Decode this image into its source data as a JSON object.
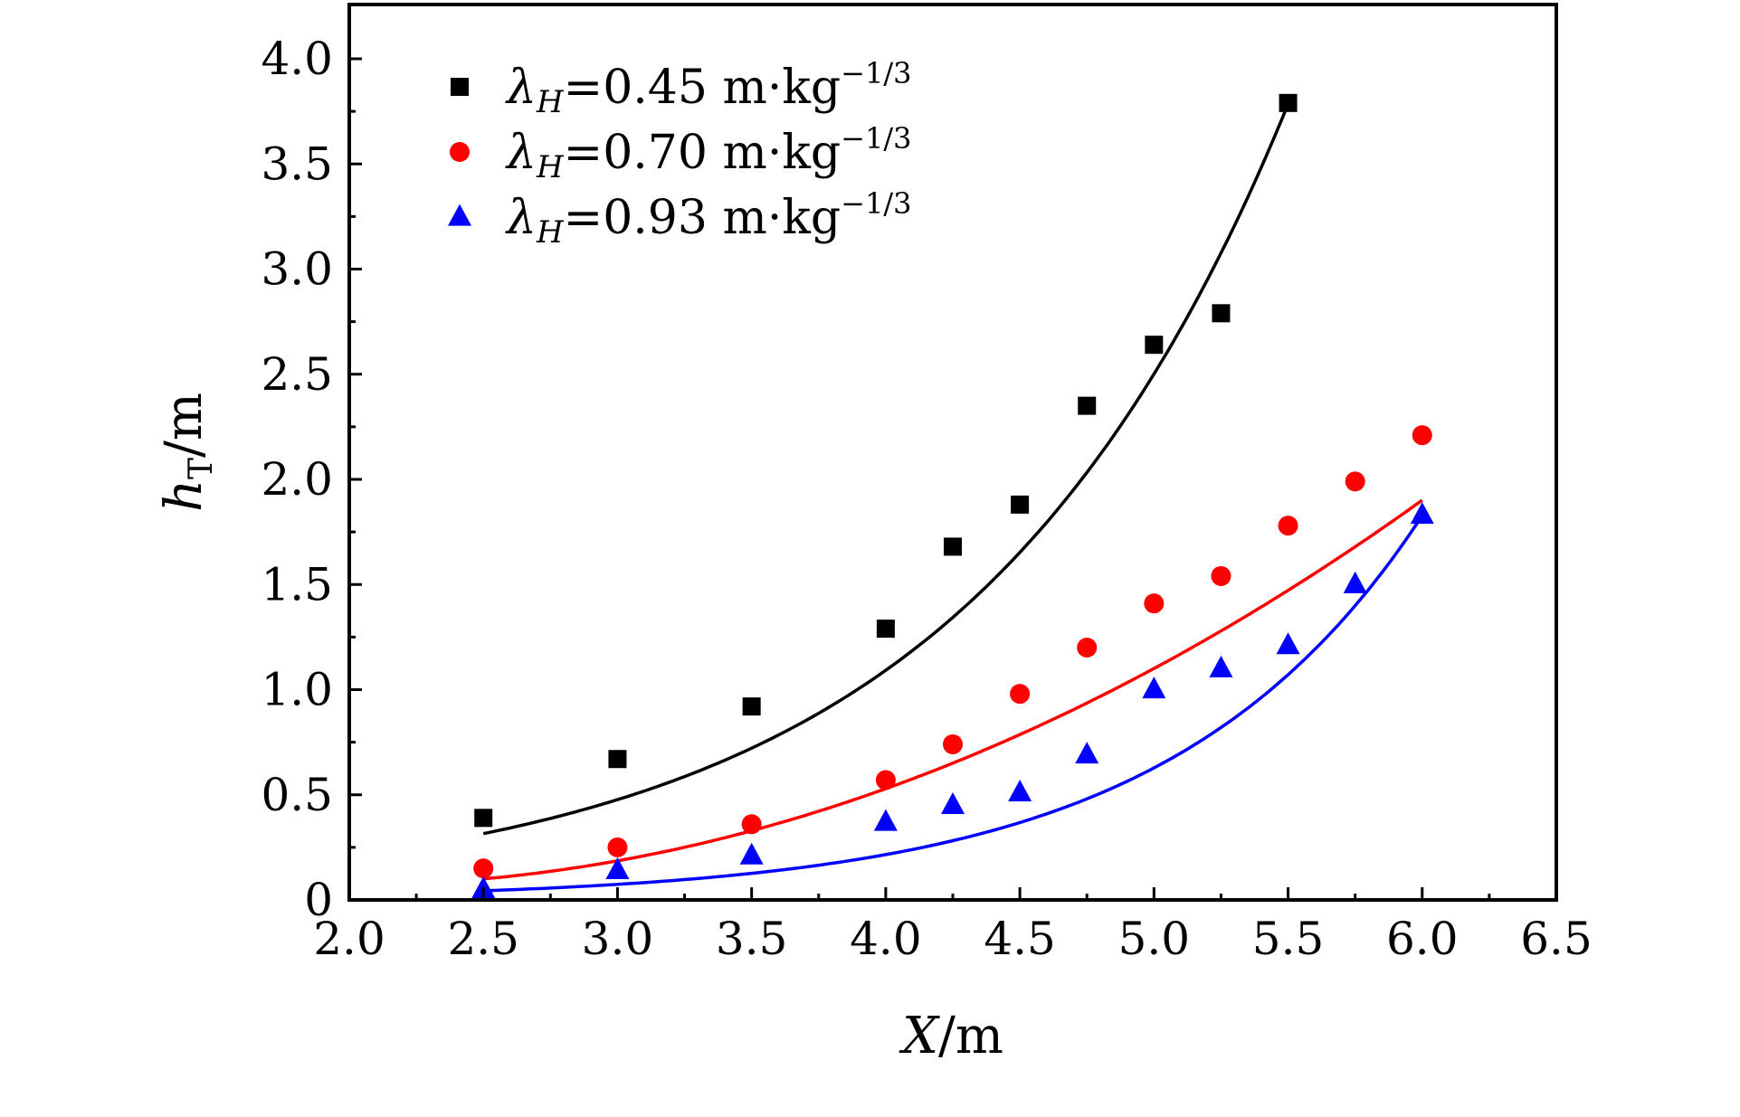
{
  "chart_data": {
    "type": "scatter",
    "title": "",
    "xlabel": {
      "var": "X",
      "unit": "/m"
    },
    "ylabel": {
      "var": "h",
      "sub": "T",
      "unit": "/m"
    },
    "xlim": [
      2.0,
      6.5
    ],
    "ylim": [
      0,
      4.25
    ],
    "xticks": [
      2.0,
      2.5,
      3.0,
      3.5,
      4.0,
      4.5,
      5.0,
      5.5,
      6.0,
      6.5
    ],
    "xtick_labels": [
      "2.0",
      "2.5",
      "3.0",
      "3.5",
      "4.0",
      "4.5",
      "5.0",
      "5.5",
      "6.0",
      "6.5"
    ],
    "yticks": [
      0,
      0.5,
      1.0,
      1.5,
      2.0,
      2.5,
      3.0,
      3.5,
      4.0
    ],
    "ytick_labels": [
      "0",
      "0.5",
      "1.0",
      "1.5",
      "2.0",
      "2.5",
      "3.0",
      "3.5",
      "4.0"
    ],
    "grid": false,
    "legend_position": "top-left",
    "series": [
      {
        "name": "λH=0.45 m·kg−1/3",
        "symbol": "λ",
        "sub": "H",
        "value": "=0.45 m·kg",
        "sup": "−1/3",
        "marker": "square",
        "color": "#000000",
        "x": [
          2.5,
          3.0,
          3.5,
          4.0,
          4.25,
          4.5,
          4.75,
          5.0,
          5.25,
          5.5
        ],
        "y": [
          0.39,
          0.67,
          0.92,
          1.29,
          1.68,
          1.88,
          2.35,
          2.64,
          2.79,
          3.79
        ],
        "fit": {
          "type": "exponential",
          "a": 0.0397,
          "b": 0.8286,
          "x_range": [
            2.5,
            5.5
          ]
        }
      },
      {
        "name": "λH=0.70 m·kg−1/3",
        "symbol": "λ",
        "sub": "H",
        "value": "=0.70 m·kg",
        "sup": "−1/3",
        "marker": "circle",
        "color": "#ff0000",
        "x": [
          2.5,
          3.0,
          3.5,
          4.0,
          4.25,
          4.5,
          4.75,
          5.0,
          5.25,
          5.5,
          5.75,
          6.0
        ],
        "y": [
          0.15,
          0.25,
          0.36,
          0.57,
          0.74,
          0.98,
          1.2,
          1.41,
          1.54,
          1.78,
          1.99,
          2.21
        ],
        "fit": {
          "type": "quadratic",
          "a": 0.1143,
          "b": -0.4571,
          "c": 0.5286,
          "x_range": [
            2.5,
            6.0
          ]
        }
      },
      {
        "name": "λH=0.93 m·kg−1/3",
        "symbol": "λ",
        "sub": "H",
        "value": "=0.93 m·kg",
        "sup": "−1/3",
        "marker": "triangle",
        "color": "#0000ff",
        "x": [
          2.5,
          3.0,
          3.5,
          4.0,
          4.25,
          4.5,
          4.75,
          5.0,
          5.25,
          5.5,
          5.75,
          6.0
        ],
        "y": [
          0.05,
          0.14,
          0.21,
          0.37,
          0.45,
          0.51,
          0.69,
          1.0,
          1.1,
          1.21,
          1.5,
          1.83
        ],
        "fit": {
          "type": "exponential",
          "a": 0.003,
          "b": 1.0687,
          "x_range": [
            2.5,
            6.0
          ]
        }
      }
    ]
  }
}
